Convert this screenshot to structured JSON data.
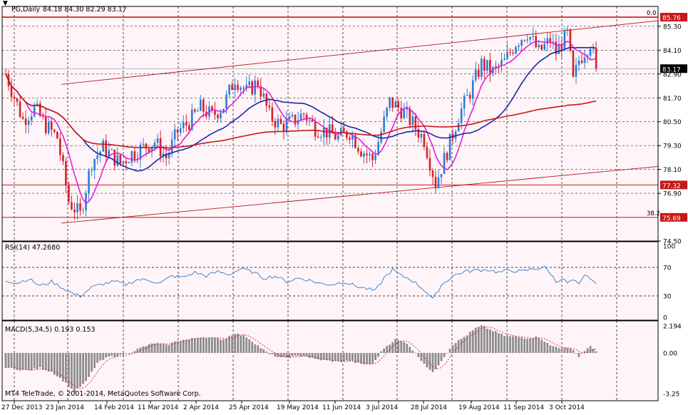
{
  "header": {
    "symbol_label": "PG,Daily",
    "ohlc_label": "84.18 84.30 82.29 83.17",
    "rsi_label": "RSI(14) 47.2680",
    "macd_label": "MACD(5,34,5) 0.193 0.153",
    "copyright": "MT4 TeleTrade, © 2001-2014, MetaQuotes Software Corp."
  },
  "colors": {
    "background": "#ffffff",
    "plot_background": "#fff5f8",
    "grid": "#000000",
    "bull_candle": "#2e7bd6",
    "bear_candle": "#d61e28",
    "ma_fast": "#e020d8",
    "ma_mid": "#1a2aa8",
    "ma_slow": "#c81818",
    "channel": "#b01818",
    "level_line": "#c81818",
    "rsi_line": "#2a7bd0",
    "macd_hist": "#8c8c8c",
    "macd_signal": "#e01818",
    "last_price_bg": "#000000",
    "level_price_bg": "#c81818"
  },
  "chart_data": [
    {
      "type": "candlestick",
      "title": "PG,Daily",
      "ylim": [
        74.5,
        86.3
      ],
      "price_ticks": [
        "85.30",
        "84.10",
        "82.90",
        "81.70",
        "80.50",
        "79.30",
        "78.10",
        "76.90",
        "74.50"
      ],
      "x_ticks": [
        "27 Dec 2013",
        "23 Jan 2014",
        "14 Feb 2014",
        "11 Mar 2014",
        "2 Apr 2014",
        "25 Apr 2014",
        "19 May 2014",
        "11 Jun 2014",
        "3 Jul 2014",
        "28 Jul 2014",
        "19 Aug 2014",
        "11 Sep 2014",
        "3 Oct 2014"
      ],
      "last_price": "83.17",
      "last_price_value": 83.17,
      "levels": [
        {
          "value": 85.76,
          "label": "85.76",
          "fib": "0.0"
        },
        {
          "value": 77.32,
          "label": "77.32",
          "fib": ""
        },
        {
          "value": 75.69,
          "label": "75.69",
          "fib": "38.2"
        }
      ],
      "channel": {
        "upper": [
          [
            0.09,
            82.38
          ],
          [
            1.0,
            85.58
          ]
        ],
        "lower": [
          [
            0.09,
            75.4
          ],
          [
            1.0,
            78.25
          ]
        ]
      },
      "anchors": [
        [
          0,
          82.9
        ],
        [
          6,
          80.6
        ],
        [
          10,
          81.2
        ],
        [
          14,
          80.3
        ],
        [
          18,
          79.7
        ],
        [
          22,
          76.5
        ],
        [
          26,
          75.8
        ],
        [
          30,
          78.5
        ],
        [
          34,
          79.2
        ],
        [
          40,
          78.4
        ],
        [
          44,
          78.9
        ],
        [
          48,
          79.2
        ],
        [
          52,
          79.5
        ],
        [
          56,
          78.7
        ],
        [
          60,
          80.0
        ],
        [
          64,
          80.5
        ],
        [
          68,
          81.2
        ],
        [
          72,
          80.8
        ],
        [
          76,
          81.3
        ],
        [
          80,
          82.7
        ],
        [
          84,
          82.0
        ],
        [
          88,
          82.5
        ],
        [
          92,
          80.8
        ],
        [
          96,
          80.3
        ],
        [
          100,
          80.5
        ],
        [
          104,
          80.9
        ],
        [
          108,
          80.2
        ],
        [
          112,
          80.0
        ],
        [
          116,
          79.7
        ],
        [
          120,
          80.0
        ],
        [
          124,
          79.1
        ],
        [
          128,
          78.6
        ],
        [
          130,
          79.5
        ],
        [
          134,
          81.5
        ],
        [
          138,
          81.1
        ],
        [
          142,
          80.4
        ],
        [
          146,
          79.6
        ],
        [
          150,
          77.4
        ],
        [
          154,
          79.0
        ],
        [
          158,
          80.8
        ],
        [
          162,
          82.0
        ],
        [
          166,
          83.4
        ],
        [
          170,
          83.0
        ],
        [
          174,
          83.5
        ],
        [
          178,
          84.5
        ],
        [
          182,
          85.0
        ],
        [
          186,
          84.0
        ],
        [
          190,
          84.6
        ],
        [
          192,
          84.0
        ],
        [
          196,
          84.9
        ],
        [
          198,
          82.5
        ],
        [
          200,
          83.6
        ],
        [
          204,
          84.5
        ],
        [
          206,
          83.17
        ]
      ]
    },
    {
      "type": "line",
      "title": "RSI(14) 47.2680",
      "ylim": [
        0,
        100
      ],
      "ticks": [
        "100",
        "70",
        "30",
        "0"
      ],
      "levels": [
        70,
        30
      ],
      "values": [
        [
          0,
          52
        ],
        [
          4,
          48
        ],
        [
          8,
          54
        ],
        [
          12,
          44
        ],
        [
          16,
          50
        ],
        [
          20,
          41
        ],
        [
          24,
          32
        ],
        [
          26,
          30
        ],
        [
          30,
          42
        ],
        [
          34,
          47
        ],
        [
          38,
          50
        ],
        [
          42,
          46
        ],
        [
          46,
          53
        ],
        [
          50,
          52
        ],
        [
          54,
          48
        ],
        [
          58,
          58
        ],
        [
          62,
          56
        ],
        [
          66,
          63
        ],
        [
          70,
          58
        ],
        [
          74,
          64
        ],
        [
          78,
          60
        ],
        [
          82,
          68
        ],
        [
          86,
          64
        ],
        [
          90,
          55
        ],
        [
          94,
          58
        ],
        [
          98,
          50
        ],
        [
          102,
          55
        ],
        [
          106,
          52
        ],
        [
          110,
          47
        ],
        [
          114,
          46
        ],
        [
          118,
          50
        ],
        [
          122,
          44
        ],
        [
          126,
          40
        ],
        [
          129,
          37
        ],
        [
          132,
          55
        ],
        [
          135,
          67
        ],
        [
          138,
          58
        ],
        [
          141,
          54
        ],
        [
          144,
          45
        ],
        [
          147,
          35
        ],
        [
          149,
          25
        ],
        [
          152,
          45
        ],
        [
          156,
          58
        ],
        [
          160,
          64
        ],
        [
          164,
          66
        ],
        [
          168,
          67
        ],
        [
          172,
          63
        ],
        [
          176,
          66
        ],
        [
          180,
          64
        ],
        [
          184,
          68
        ],
        [
          188,
          70
        ],
        [
          190,
          62
        ],
        [
          192,
          50
        ],
        [
          194,
          55
        ],
        [
          196,
          48
        ],
        [
          198,
          52
        ],
        [
          200,
          45
        ],
        [
          202,
          58
        ],
        [
          204,
          55
        ],
        [
          206,
          47
        ]
      ]
    },
    {
      "type": "bar",
      "title": "MACD(5,34,5) 0.193 0.153",
      "ylim": [
        -3.25,
        2.194
      ],
      "ticks": [
        "2.194",
        "0.00",
        "-3.25"
      ],
      "values": [
        [
          0,
          -1.1
        ],
        [
          4,
          -1.3
        ],
        [
          8,
          -1.4
        ],
        [
          12,
          -1.2
        ],
        [
          16,
          -1.5
        ],
        [
          20,
          -2.2
        ],
        [
          24,
          -3.1
        ],
        [
          28,
          -2.3
        ],
        [
          32,
          -0.8
        ],
        [
          36,
          -0.3
        ],
        [
          40,
          -0.2
        ],
        [
          44,
          0.1
        ],
        [
          48,
          0.5
        ],
        [
          52,
          0.8
        ],
        [
          56,
          0.6
        ],
        [
          60,
          1.0
        ],
        [
          64,
          1.1
        ],
        [
          68,
          1.3
        ],
        [
          72,
          1.2
        ],
        [
          76,
          1.1
        ],
        [
          80,
          1.6
        ],
        [
          84,
          1.3
        ],
        [
          88,
          0.6
        ],
        [
          92,
          -0.1
        ],
        [
          96,
          -0.4
        ],
        [
          100,
          -0.3
        ],
        [
          104,
          -0.2
        ],
        [
          108,
          -0.5
        ],
        [
          112,
          -0.6
        ],
        [
          116,
          -0.7
        ],
        [
          120,
          -0.6
        ],
        [
          124,
          -0.9
        ],
        [
          128,
          -0.9
        ],
        [
          132,
          0.4
        ],
        [
          136,
          1.1
        ],
        [
          140,
          0.8
        ],
        [
          144,
          -0.3
        ],
        [
          147,
          -1.1
        ],
        [
          149,
          -1.6
        ],
        [
          152,
          -0.6
        ],
        [
          156,
          0.7
        ],
        [
          160,
          1.3
        ],
        [
          164,
          2.0
        ],
        [
          166,
          2.2
        ],
        [
          170,
          1.8
        ],
        [
          174,
          1.4
        ],
        [
          178,
          1.3
        ],
        [
          182,
          1.2
        ],
        [
          186,
          1.3
        ],
        [
          190,
          0.6
        ],
        [
          194,
          0.4
        ],
        [
          198,
          0.3
        ],
        [
          200,
          -0.3
        ],
        [
          202,
          0.2
        ],
        [
          204,
          0.5
        ],
        [
          206,
          0.19
        ]
      ],
      "signal_label": "signal"
    }
  ]
}
